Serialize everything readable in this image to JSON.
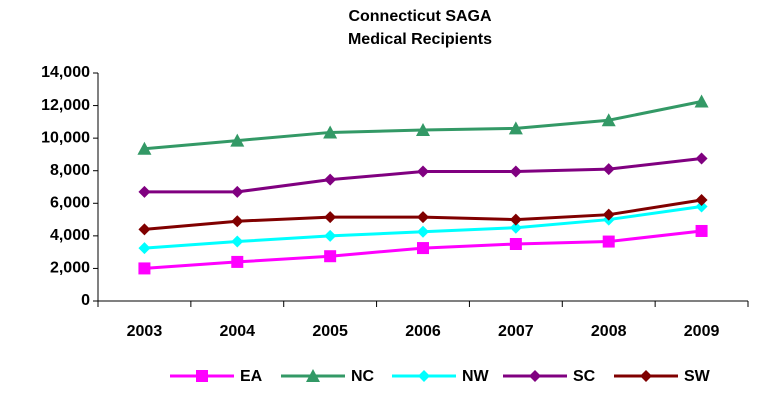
{
  "chart_data": {
    "type": "line",
    "title": "Connecticut SAGA",
    "subtitle": "Medical Recipients",
    "categories": [
      "2003",
      "2004",
      "2005",
      "2006",
      "2007",
      "2008",
      "2009"
    ],
    "series": [
      {
        "name": "EA",
        "color": "#ff00ff",
        "marker": "square",
        "values": [
          2000,
          2400,
          2750,
          3250,
          3500,
          3650,
          4300
        ]
      },
      {
        "name": "NC",
        "color": "#339966",
        "marker": "triangle",
        "values": [
          9350,
          9850,
          10350,
          10500,
          10600,
          11100,
          12250
        ]
      },
      {
        "name": "NW",
        "color": "#00ffff",
        "marker": "diamond",
        "values": [
          3250,
          3650,
          4000,
          4250,
          4500,
          5000,
          5800
        ]
      },
      {
        "name": "SC",
        "color": "#800080",
        "marker": "diamond",
        "values": [
          6700,
          6700,
          7450,
          7950,
          7950,
          8100,
          8750
        ]
      },
      {
        "name": "SW",
        "color": "#800000",
        "marker": "diamond",
        "values": [
          4400,
          4900,
          5150,
          5150,
          5000,
          5300,
          6200
        ]
      }
    ],
    "ylim": [
      0,
      14000
    ],
    "yticks": [
      0,
      {
        "value": 2000,
        "label": "2,000"
      },
      {
        "value": 4000,
        "label": "4,000"
      },
      {
        "value": 6000,
        "label": "6,000"
      },
      {
        "value": 8000,
        "label": "8,000"
      },
      {
        "value": 10000,
        "label": "10,000"
      },
      {
        "value": 12000,
        "label": "12,000"
      },
      {
        "value": 14000,
        "label": "14,000"
      }
    ],
    "grid": false,
    "legend": "bottom"
  }
}
